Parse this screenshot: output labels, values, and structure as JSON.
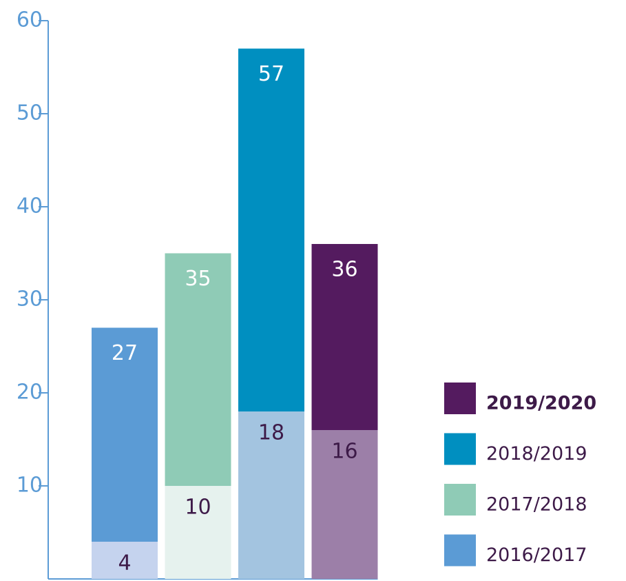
{
  "chart_data": {
    "type": "bar",
    "categories": [
      "2016/2017",
      "2017/2018",
      "2018/2019",
      "2019/2020"
    ],
    "series": [
      {
        "values": [
          27,
          35,
          57,
          36
        ],
        "colors": [
          "#5b9bd5",
          "#8fcbb6",
          "#008fc0",
          "#541b5f"
        ]
      },
      {
        "values": [
          4,
          10,
          18,
          16
        ],
        "colors": [
          "#c5d3ee",
          "#e6f2ee",
          "#a3c4e0",
          "#9c7fa8"
        ]
      }
    ],
    "ylim": [
      0,
      60
    ],
    "yticks": [
      10,
      20,
      30,
      40,
      50,
      60
    ]
  }
}
